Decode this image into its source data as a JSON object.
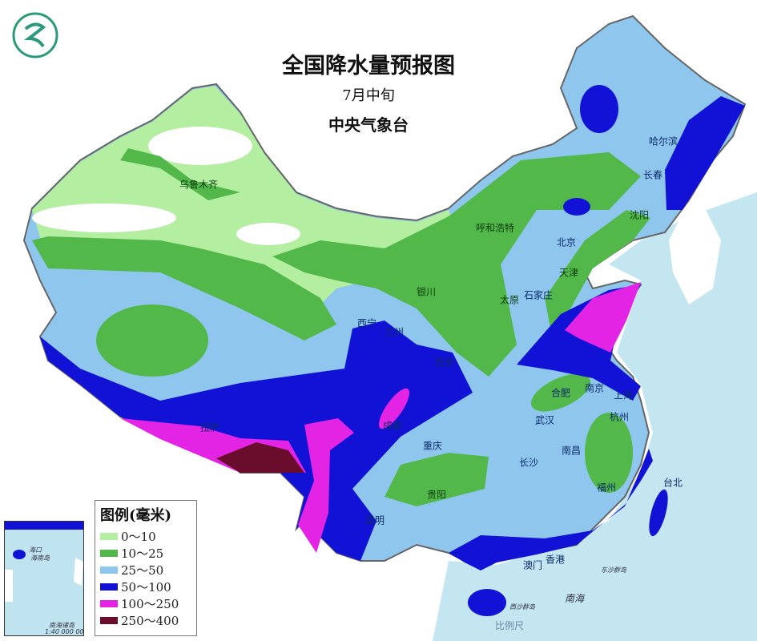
{
  "header": {
    "title": "全国降水量预报图",
    "period": "7月中旬",
    "issuer": "中央气象台"
  },
  "legend": {
    "title": "图例(毫米)",
    "items": [
      {
        "label": "0～10",
        "color": "#b4eea0"
      },
      {
        "label": "10～25",
        "color": "#52b84a"
      },
      {
        "label": "25～50",
        "color": "#8ec6ee"
      },
      {
        "label": "50～100",
        "color": "#1212d6"
      },
      {
        "label": "100～250",
        "color": "#e424e4"
      },
      {
        "label": "250～400",
        "color": "#6a0c2c"
      }
    ]
  },
  "cities": [
    "乌鲁木齐",
    "哈尔滨",
    "长春",
    "沈阳",
    "呼和浩特",
    "北京",
    "天津",
    "银川",
    "石家庄",
    "太原",
    "西宁",
    "兰州",
    "西安",
    "合肥",
    "南京",
    "上海",
    "杭州",
    "武汉",
    "重庆",
    "长沙",
    "南昌",
    "拉萨",
    "成都",
    "贵阳",
    "福州",
    "台北",
    "昆明",
    "香港",
    "澳门"
  ],
  "sea_labels": {
    "dongsha": "东沙群岛",
    "south_sea": "南海",
    "xisha": "西沙群岛"
  },
  "inset": {
    "haikou": "海口",
    "hainan": "海南岛",
    "nanhai_islands": "南海诸岛",
    "scale": "1:40 000 000"
  },
  "scale_label": "比例尺",
  "colors": {
    "sea": "#c4e6f0",
    "land_outside": "#ffffff",
    "border": "#666666"
  }
}
